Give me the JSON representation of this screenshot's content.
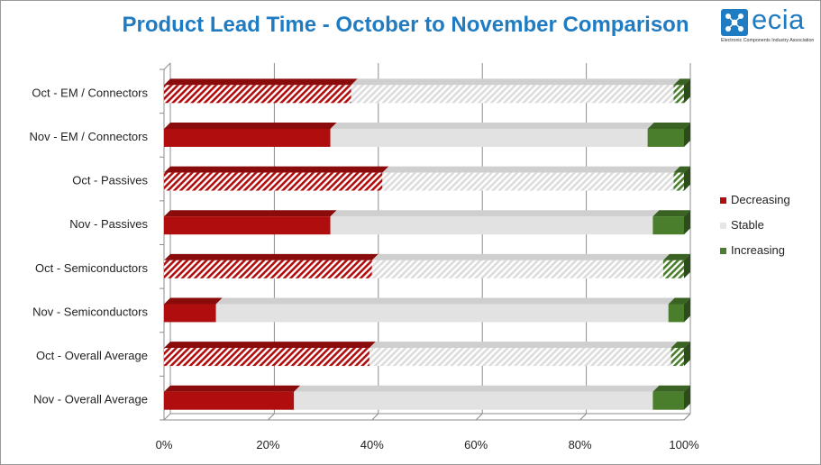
{
  "title": "Product Lead Time - October to November Comparison",
  "logo": {
    "word": "ecia",
    "tagline": "Electronic Components Industry Association"
  },
  "colors": {
    "decreasing": "#b00e0e",
    "stable": "#e2e2e2",
    "increasing": "#4a7e2c",
    "title": "#1f7bc2"
  },
  "chart_data": {
    "type": "bar",
    "orientation": "horizontal",
    "stacked": "100%",
    "title": "Product Lead Time - October to November Comparison",
    "categories": [
      "Oct - EM / Connectors",
      "Nov - EM / Connectors",
      "Oct - Passives",
      "Nov - Passives",
      "Oct - Semiconductors",
      "Nov - Semiconductors",
      "Oct - Overall Average",
      "Nov - Overall Average"
    ],
    "series": [
      {
        "name": "Decreasing",
        "values": [
          36,
          32,
          42,
          32,
          40,
          10,
          39.5,
          25
        ]
      },
      {
        "name": "Stable",
        "values": [
          62,
          61,
          56,
          62,
          56,
          87,
          58,
          69
        ]
      },
      {
        "name": "Increasing",
        "values": [
          2,
          7,
          2,
          6,
          4,
          3,
          2.5,
          6
        ]
      }
    ],
    "pattern": [
      "hatched",
      "solid",
      "hatched",
      "solid",
      "hatched",
      "solid",
      "hatched",
      "solid"
    ],
    "xlim": [
      0,
      100
    ],
    "xticks": [
      "0%",
      "20%",
      "40%",
      "60%",
      "80%",
      "100%"
    ],
    "grid": true,
    "legend": "right"
  }
}
